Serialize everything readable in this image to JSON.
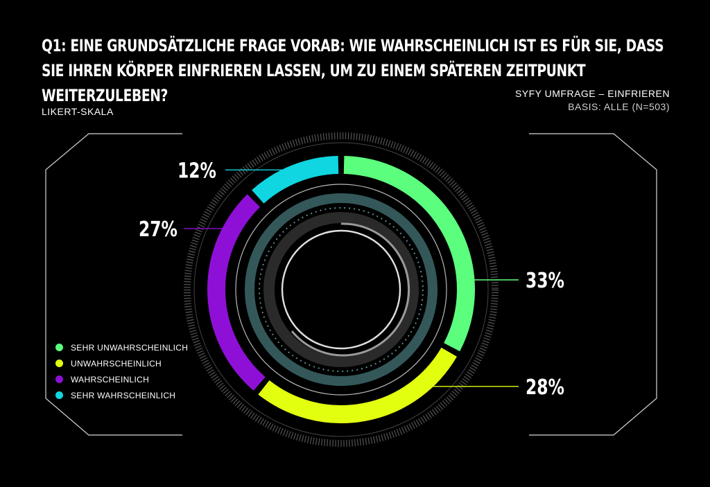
{
  "header": {
    "title": "Q1: EINE GRUNDSÄTZLICHE FRAGE VORAB: WIE WAHRSCHEINLICH IST ES FÜR SIE, DASS SIE IHREN KÖRPER EINFRIEREN LASSEN, UM ZU EINEM SPÄTEREN ZEITPUNKT WEITERZULEBEN?",
    "scale_label": "LIKERT-SKALA",
    "source": "SYFY UMFRAGE – EINFRIEREN",
    "basis": "BASIS: ALLE (N=503)"
  },
  "chart_data": {
    "type": "pie",
    "style": "donut",
    "title": "Q1: EINE GRUNDSÄTZLICHE FRAGE VORAB: WIE WAHRSCHEINLICH IST ES FÜR SIE, DASS SIE IHREN KÖRPER EINFRIEREN LASSEN, UM ZU EINEM SPÄTEREN ZEITPUNKT WEITERZULEBEN?",
    "categories": [
      "SEHR UNWAHRSCHEINLICH",
      "UNWAHRSCHEINLICH",
      "WAHRSCHEINLICH",
      "SEHR WAHRSCHEINLICH"
    ],
    "values": [
      33,
      28,
      27,
      12
    ],
    "labels": [
      "33%",
      "28%",
      "27%",
      "12%"
    ],
    "colors": [
      "#5cff7d",
      "#e3ff10",
      "#8e10d6",
      "#0fd6e0"
    ],
    "legend_position": "bottom-left"
  }
}
